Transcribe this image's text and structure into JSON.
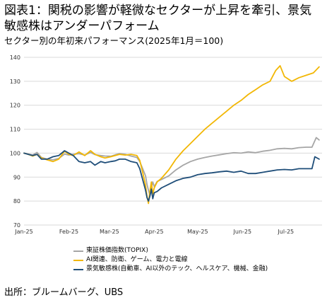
{
  "title": "図表1：関税の影響が軽微なセクターが上昇を牽引、景気敏感株はアンダーパフォーム",
  "source": "出所：ブルームバーグ、UBS",
  "colors": {
    "topix": "#a6a6a6",
    "ai": "#f2b705",
    "cyclical": "#1f4e79",
    "grid": "#d9d9d9"
  },
  "chart_data": {
    "type": "line",
    "title": "セクター別の年初来パフォーマンス(2025年1月＝100)",
    "xlabel": "",
    "ylabel": "",
    "ylim": [
      70,
      140
    ],
    "yticks": [
      70,
      80,
      90,
      100,
      110,
      120,
      130,
      140
    ],
    "x_tick_labels": [
      "Jan-25",
      "Feb-25",
      "Mar-25",
      "Apr-25",
      "May-25",
      "Jun-25",
      "Jul-25"
    ],
    "x_range_days": [
      0,
      206
    ],
    "grid": "horizontal",
    "legend_position": "bottom",
    "series": [
      {
        "name": "東証株価指数(TOPIX)",
        "color_key": "topix",
        "points": [
          [
            0,
            100
          ],
          [
            3,
            99.6
          ],
          [
            6,
            99.2
          ],
          [
            9,
            100.3
          ],
          [
            12,
            98.2
          ],
          [
            16,
            97.5
          ],
          [
            20,
            97.2
          ],
          [
            24,
            97.8
          ],
          [
            28,
            99.6
          ],
          [
            31,
            99.2
          ],
          [
            34,
            99.5
          ],
          [
            38,
            99.8
          ],
          [
            42,
            99.2
          ],
          [
            46,
            100.3
          ],
          [
            49,
            99.4
          ],
          [
            53,
            99.0
          ],
          [
            56,
            98.8
          ],
          [
            60,
            98.7
          ],
          [
            63,
            99.3
          ],
          [
            66,
            99.8
          ],
          [
            70,
            99.5
          ],
          [
            74,
            98.8
          ],
          [
            78,
            98.2
          ],
          [
            80,
            96.5
          ],
          [
            82,
            93.5
          ],
          [
            84,
            90.5
          ],
          [
            85,
            87.0
          ],
          [
            86,
            84.5
          ],
          [
            87,
            82.5
          ],
          [
            88,
            85.5
          ],
          [
            89,
            88.0
          ],
          [
            90,
            86.0
          ],
          [
            92,
            88.2
          ],
          [
            95,
            89.0
          ],
          [
            100,
            90.5
          ],
          [
            105,
            93.0
          ],
          [
            110,
            95.0
          ],
          [
            115,
            96.5
          ],
          [
            120,
            97.5
          ],
          [
            125,
            98.2
          ],
          [
            130,
            98.8
          ],
          [
            135,
            99.3
          ],
          [
            140,
            99.8
          ],
          [
            145,
            100.2
          ],
          [
            150,
            100.0
          ],
          [
            155,
            100.5
          ],
          [
            160,
            100.2
          ],
          [
            165,
            100.8
          ],
          [
            170,
            101.2
          ],
          [
            175,
            101.8
          ],
          [
            180,
            102.0
          ],
          [
            185,
            101.8
          ],
          [
            190,
            102.3
          ],
          [
            195,
            102.5
          ],
          [
            199,
            102.5
          ],
          [
            202,
            106.5
          ],
          [
            204,
            105.5
          ]
        ]
      },
      {
        "name": "AI関連、防衛、ゲーム、電力と電線",
        "color_key": "ai",
        "points": [
          [
            0,
            100
          ],
          [
            3,
            99.5
          ],
          [
            6,
            98.8
          ],
          [
            9,
            99.5
          ],
          [
            12,
            98.0
          ],
          [
            16,
            97.2
          ],
          [
            20,
            96.5
          ],
          [
            24,
            97.5
          ],
          [
            28,
            100.8
          ],
          [
            31,
            99.5
          ],
          [
            34,
            99.0
          ],
          [
            38,
            100.5
          ],
          [
            42,
            99.0
          ],
          [
            46,
            101.0
          ],
          [
            49,
            99.5
          ],
          [
            53,
            98.5
          ],
          [
            56,
            98.0
          ],
          [
            60,
            98.5
          ],
          [
            63,
            99.0
          ],
          [
            66,
            99.5
          ],
          [
            70,
            99.2
          ],
          [
            74,
            99.5
          ],
          [
            78,
            99.0
          ],
          [
            80,
            97.0
          ],
          [
            82,
            92.0
          ],
          [
            84,
            86.5
          ],
          [
            85,
            82.0
          ],
          [
            86,
            79.0
          ],
          [
            87,
            84.0
          ],
          [
            88,
            88.0
          ],
          [
            89,
            83.0
          ],
          [
            90,
            85.5
          ],
          [
            92,
            88.0
          ],
          [
            95,
            89.5
          ],
          [
            100,
            93.0
          ],
          [
            105,
            97.5
          ],
          [
            110,
            101.0
          ],
          [
            115,
            104.0
          ],
          [
            120,
            107.0
          ],
          [
            125,
            110.0
          ],
          [
            130,
            112.5
          ],
          [
            135,
            115.0
          ],
          [
            140,
            117.5
          ],
          [
            145,
            120.0
          ],
          [
            150,
            122.0
          ],
          [
            155,
            124.5
          ],
          [
            160,
            126.5
          ],
          [
            165,
            128.5
          ],
          [
            170,
            130.0
          ],
          [
            174,
            134.5
          ],
          [
            177,
            136.5
          ],
          [
            180,
            132.0
          ],
          [
            185,
            130.0
          ],
          [
            190,
            131.5
          ],
          [
            195,
            132.5
          ],
          [
            200,
            133.5
          ],
          [
            204,
            136.0
          ]
        ]
      },
      {
        "name": "景気敏感株(自動車、AI以外のテック、ヘルスケア、機械、金融)",
        "color_key": "cyclical",
        "points": [
          [
            0,
            100
          ],
          [
            3,
            99.5
          ],
          [
            6,
            99.0
          ],
          [
            9,
            99.5
          ],
          [
            12,
            97.5
          ],
          [
            16,
            97.5
          ],
          [
            20,
            98.5
          ],
          [
            24,
            99.0
          ],
          [
            28,
            101.0
          ],
          [
            31,
            100.0
          ],
          [
            34,
            99.0
          ],
          [
            38,
            96.5
          ],
          [
            42,
            96.0
          ],
          [
            46,
            96.5
          ],
          [
            49,
            95.0
          ],
          [
            53,
            96.5
          ],
          [
            56,
            96.0
          ],
          [
            60,
            96.5
          ],
          [
            63,
            96.8
          ],
          [
            66,
            97.5
          ],
          [
            70,
            97.5
          ],
          [
            74,
            96.5
          ],
          [
            78,
            96.0
          ],
          [
            80,
            93.5
          ],
          [
            82,
            89.0
          ],
          [
            84,
            84.5
          ],
          [
            85,
            81.5
          ],
          [
            86,
            80.0
          ],
          [
            87,
            82.0
          ],
          [
            88,
            85.0
          ],
          [
            89,
            81.0
          ],
          [
            90,
            83.5
          ],
          [
            92,
            84.0
          ],
          [
            95,
            85.5
          ],
          [
            100,
            87.0
          ],
          [
            105,
            88.5
          ],
          [
            110,
            89.5
          ],
          [
            115,
            90.0
          ],
          [
            120,
            91.0
          ],
          [
            125,
            91.5
          ],
          [
            130,
            91.8
          ],
          [
            135,
            92.2
          ],
          [
            140,
            92.5
          ],
          [
            145,
            92.0
          ],
          [
            150,
            92.5
          ],
          [
            155,
            91.5
          ],
          [
            160,
            91.5
          ],
          [
            165,
            92.0
          ],
          [
            170,
            92.5
          ],
          [
            175,
            93.0
          ],
          [
            180,
            93.2
          ],
          [
            185,
            93.0
          ],
          [
            190,
            93.5
          ],
          [
            195,
            93.5
          ],
          [
            199,
            93.5
          ],
          [
            201,
            98.5
          ],
          [
            204,
            97.5
          ]
        ]
      }
    ]
  }
}
